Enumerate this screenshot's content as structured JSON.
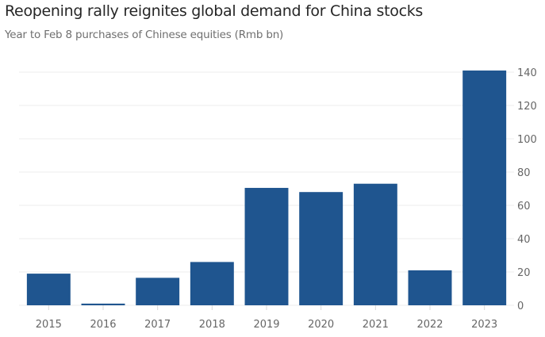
{
  "chart_data": {
    "type": "bar",
    "title": "Reopening rally reignites global demand for China stocks",
    "subtitle": "Year to Feb 8 purchases of Chinese equities (Rmb bn)",
    "xlabel": "",
    "ylabel": "",
    "categories": [
      "2015",
      "2016",
      "2017",
      "2018",
      "2019",
      "2020",
      "2021",
      "2022",
      "2023"
    ],
    "values": [
      19,
      1,
      16.5,
      26,
      70.5,
      68,
      73,
      21,
      141
    ],
    "ylim": [
      0,
      140
    ],
    "yticks": [
      0,
      20,
      40,
      60,
      80,
      100,
      120,
      140
    ],
    "grid": true,
    "y_axis_side": "right",
    "bar_color": "#1f558f",
    "grid_color": "#ececec"
  }
}
